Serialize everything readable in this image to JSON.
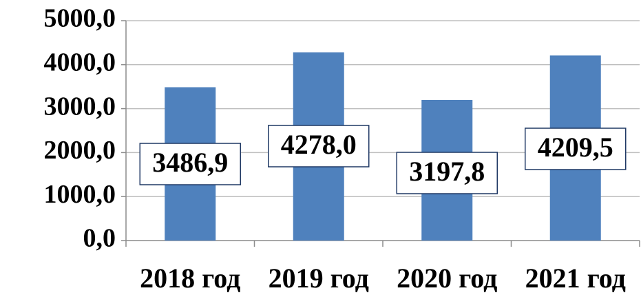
{
  "chart_data": {
    "type": "bar",
    "categories": [
      "2018 год",
      "2019 год",
      "2020 год",
      "2021 год"
    ],
    "values": [
      3486.9,
      4278.0,
      3197.8,
      4209.5
    ],
    "value_labels": [
      "3486,9",
      "4278,0",
      "3197,8",
      "4209,5"
    ],
    "color": "#4f81bd",
    "ylim": [
      0,
      5000
    ],
    "yticks": [
      {
        "value": 0,
        "label": "0,0"
      },
      {
        "value": 1000,
        "label": "1000,0"
      },
      {
        "value": 2000,
        "label": "2000,0"
      },
      {
        "value": 3000,
        "label": "3000,0"
      },
      {
        "value": 4000,
        "label": "4000,0"
      },
      {
        "value": 5000,
        "label": "5000,0"
      }
    ],
    "grid": true
  }
}
